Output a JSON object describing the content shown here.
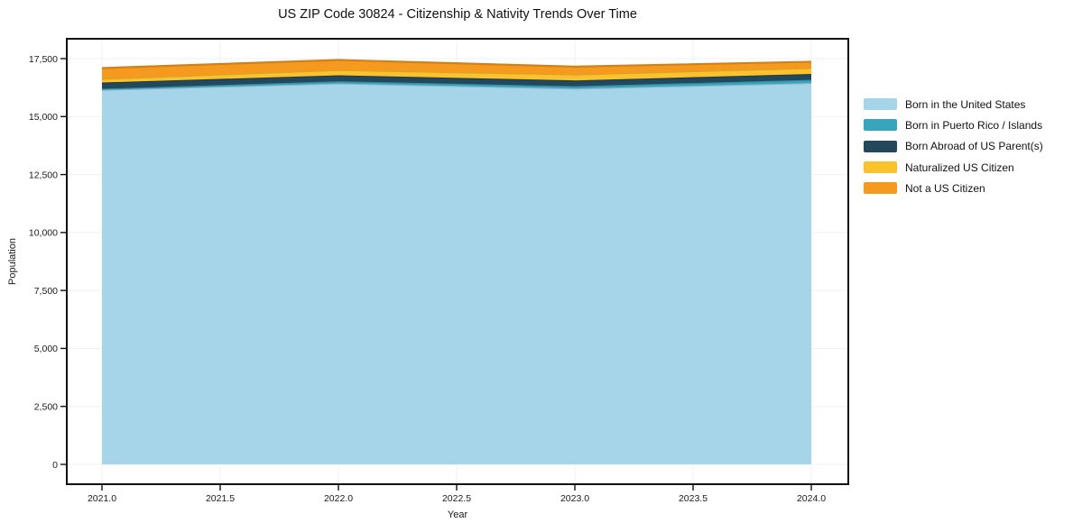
{
  "title": "US ZIP Code 30824 - Citizenship & Nativity Trends Over Time",
  "chart_data": {
    "type": "area",
    "stacked": true,
    "title": "US ZIP Code 30824 - Citizenship & Nativity Trends Over Time",
    "xlabel": "Year",
    "ylabel": "Population",
    "x": [
      2021,
      2022,
      2023,
      2024
    ],
    "series": [
      {
        "name": "Born in the United States",
        "color": "#a6d4e8",
        "values": [
          16150,
          16430,
          16210,
          16450
        ]
      },
      {
        "name": "Born in Puerto Rico / Islands",
        "color": "#38a5bf",
        "values": [
          50,
          95,
          100,
          135
        ]
      },
      {
        "name": "Born Abroad of US Parent(s)",
        "color": "#23485c",
        "values": [
          270,
          255,
          250,
          255
        ]
      },
      {
        "name": "Naturalized US Citizen",
        "color": "#fcc22e",
        "values": [
          155,
          230,
          255,
          255
        ]
      },
      {
        "name": "Not a US Citizen",
        "color": "#f5991f",
        "values": [
          465,
          430,
          340,
          270
        ]
      }
    ],
    "x_tick_labels": [
      "2021.0",
      "2021.5",
      "2022.0",
      "2022.5",
      "2023.0",
      "2023.5",
      "2024.0"
    ],
    "y_tick_labels": [
      "0",
      "2,500",
      "5,000",
      "7,500",
      "10,000",
      "12,500",
      "15,000",
      "17,500"
    ],
    "ylim": [
      0,
      17500
    ],
    "xlim": [
      2020.85,
      2024.16
    ],
    "grid": true,
    "legend_position": "right-top-outside",
    "grid_color": "#f0f0f0",
    "axis_color": "#111111"
  }
}
